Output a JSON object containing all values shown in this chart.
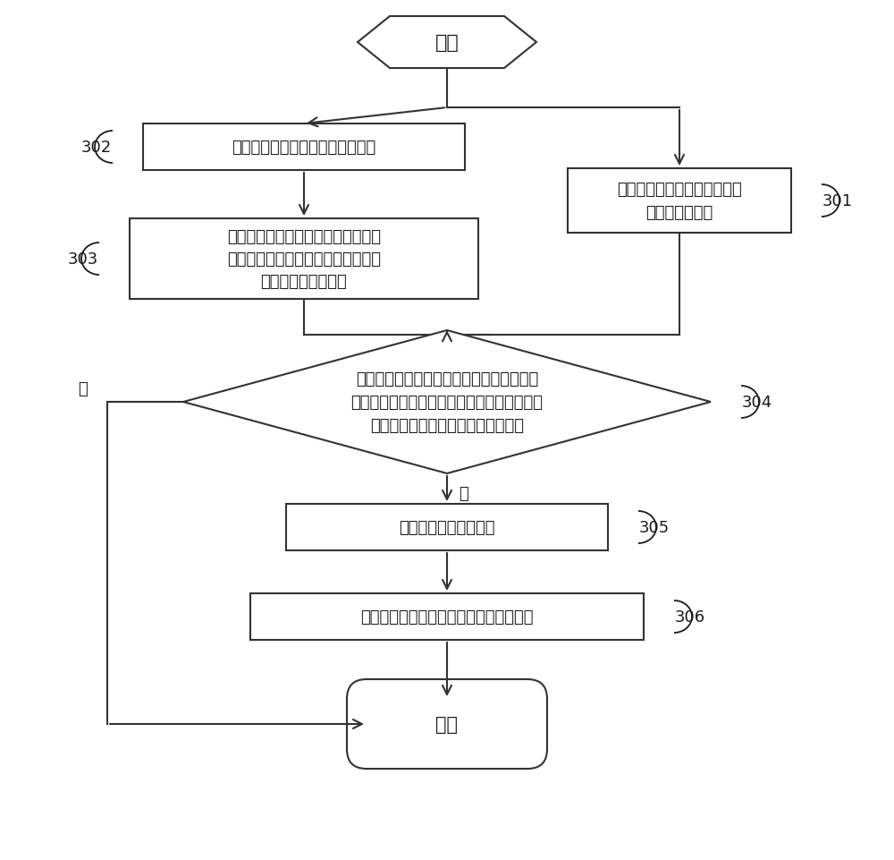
{
  "bg_color": "#ffffff",
  "line_color": "#333333",
  "box_color": "#ffffff",
  "box_edge": "#333333",
  "text_color": "#1a1a1a",
  "font_size": 14,
  "label_font_size": 13,
  "start_text": "开始",
  "end_text": "结束",
  "box302_text": "检测所述射频通路的需要发射功率",
  "box301_text": "检测所述射频通路传输数据时\n的通路功率指数",
  "box303_text": "根据预设的发射功率与发射功率指数\n的对应关系，确定所述需要发射功率\n对应的发射功率指数",
  "diamond304_text": "判断所述需要发射功率对应的发射功率指数\n与所述射频通路传输数据时的发射功率指数的\n差值是否大于或者等于预设第一阈值",
  "box305_text": "确定所述射频通路异常",
  "box306_text": "输出与所述射频通路异常关联的提示消息",
  "yes_text": "是",
  "no_text": "否",
  "label_302": "302",
  "label_303": "303",
  "label_301": "301",
  "label_304": "304",
  "label_305": "305",
  "label_306": "306"
}
